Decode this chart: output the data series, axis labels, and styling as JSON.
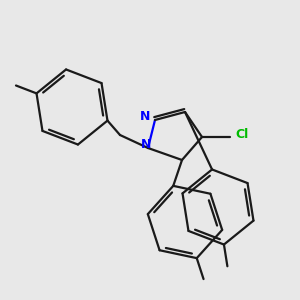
{
  "background_color": "#e8e8e8",
  "bond_color": "#1a1a1a",
  "nitrogen_color": "#0000ff",
  "chlorine_color": "#00bb00",
  "line_width": 1.6,
  "figsize": [
    3.0,
    3.0
  ],
  "dpi": 100,
  "xlim": [
    0,
    300
  ],
  "ylim": [
    0,
    300
  ]
}
